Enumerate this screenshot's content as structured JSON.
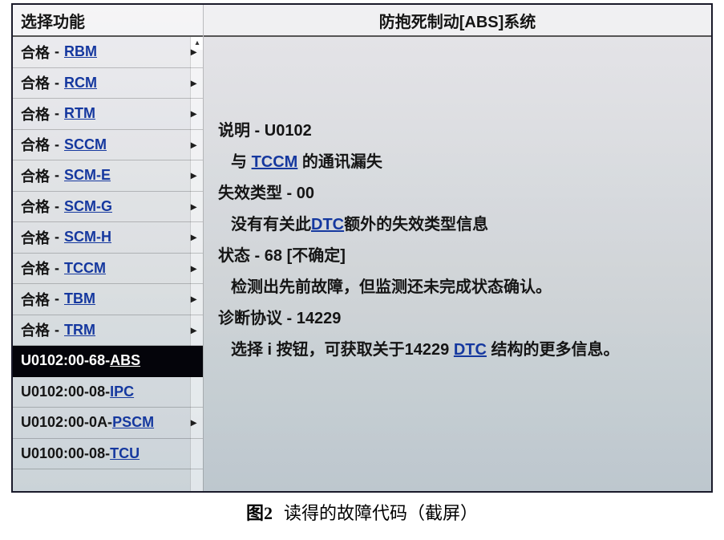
{
  "colors": {
    "text": "#1a1a1a",
    "link": "#1a3a9a",
    "selected_bg": "#0a0a0f",
    "selected_text": "#ffffff",
    "frame_border": "#1a1a2a",
    "screen_bg_top": "#dddce0",
    "screen_bg_mid": "#c9cdd0",
    "screen_bg_bot": "#b6c0c6"
  },
  "sidebar": {
    "header": "选择功能",
    "status_pass": "合格",
    "sep": "-",
    "chevron": "▸",
    "items": [
      {
        "status": "合格",
        "module": "RBM",
        "has_chevron": true,
        "selected": false
      },
      {
        "status": "合格",
        "module": "RCM",
        "has_chevron": true,
        "selected": false
      },
      {
        "status": "合格",
        "module": "RTM",
        "has_chevron": true,
        "selected": false
      },
      {
        "status": "合格",
        "module": "SCCM",
        "has_chevron": true,
        "selected": false
      },
      {
        "status": "合格",
        "module": "SCM-E",
        "has_chevron": true,
        "selected": false
      },
      {
        "status": "合格",
        "module": "SCM-G",
        "has_chevron": true,
        "selected": false
      },
      {
        "status": "合格",
        "module": "SCM-H",
        "has_chevron": true,
        "selected": false
      },
      {
        "status": "合格",
        "module": "TCCM",
        "has_chevron": true,
        "selected": false
      },
      {
        "status": "合格",
        "module": "TBM",
        "has_chevron": true,
        "selected": false
      },
      {
        "status": "合格",
        "module": "TRM",
        "has_chevron": true,
        "selected": false
      },
      {
        "status": "U0102:00-68-",
        "module": "ABS",
        "has_chevron": false,
        "selected": true
      },
      {
        "status": "U0102:00-08-",
        "module": "IPC",
        "has_chevron": false,
        "selected": false
      },
      {
        "status": "U0102:00-0A-",
        "module": "PSCM",
        "has_chevron": true,
        "selected": false
      },
      {
        "status": "U0100:00-08-",
        "module": "TCU",
        "has_chevron": false,
        "selected": false
      }
    ]
  },
  "main": {
    "header": "防抱死制动[ABS]系统",
    "desc_label": "说明 - U0102",
    "desc_line_pre": "与 ",
    "desc_link": "TCCM",
    "desc_line_post": " 的通讯漏失",
    "fail_type_label": "失效类型 - 00",
    "fail_line_pre": "没有有关此",
    "fail_link": "DTC",
    "fail_line_post": "额外的失效类型信息",
    "status_label": "状态 - 68 [不确定]",
    "status_line": "检测出先前故障，但监测还未完成状态确认。",
    "proto_label": "诊断协议 - 14229",
    "proto_line_pre": "选择 i 按钮，可获取关于14229 ",
    "proto_link": "DTC",
    "proto_line_post": " 结构的更多信息。"
  },
  "caption": {
    "label": "图2",
    "text": "读得的故障代码（截屏）"
  }
}
